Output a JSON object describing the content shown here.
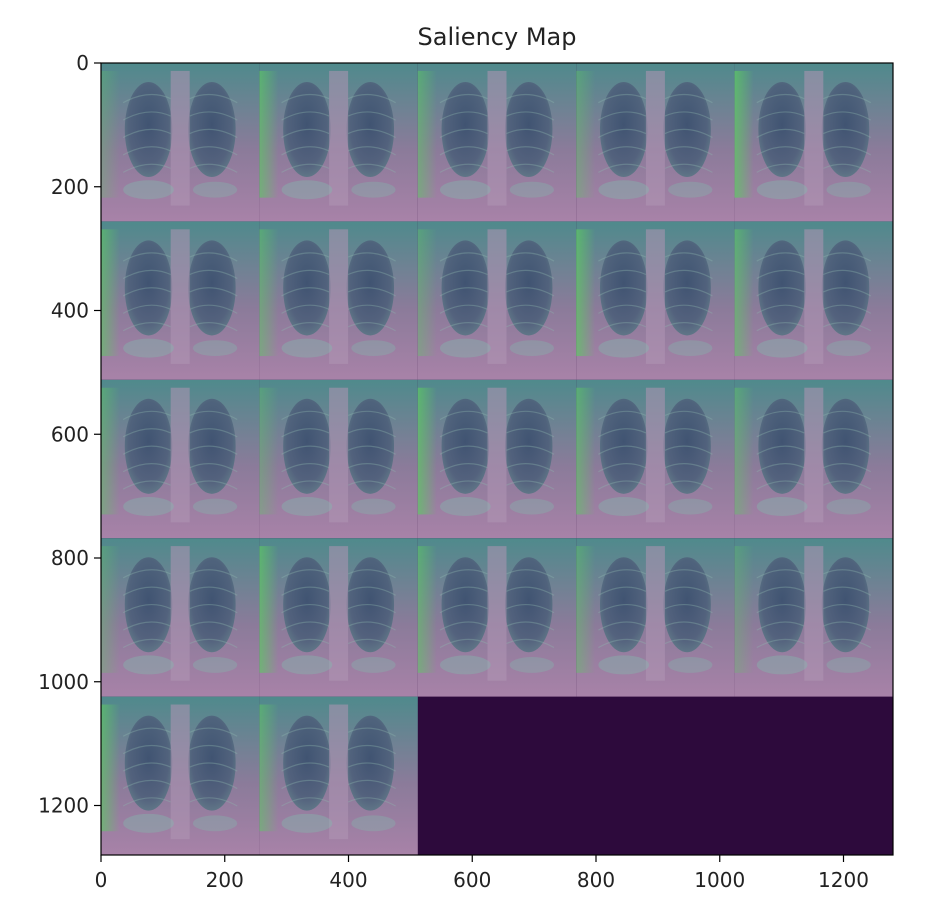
{
  "chart_data": {
    "type": "heatmap",
    "title": "Saliency Map",
    "xlabel": "",
    "ylabel": "",
    "xlim": [
      0,
      1280
    ],
    "ylim": [
      1280,
      0
    ],
    "grid": false,
    "image_extent": {
      "width": 1280,
      "height": 1280
    },
    "tile_size": 256,
    "grid_rows": 5,
    "grid_cols": 5,
    "tile_count": 22,
    "tile_content": "chest x-ray saliency overlay",
    "x_ticks": [
      0,
      200,
      400,
      600,
      800,
      1000,
      1200
    ],
    "y_ticks": [
      0,
      200,
      400,
      600,
      800,
      1000,
      1200
    ],
    "colormap": [
      "#440154",
      "#3b528b",
      "#21908d",
      "#5dc863",
      "#fde725"
    ],
    "empty_color": "#2d0a3c"
  }
}
